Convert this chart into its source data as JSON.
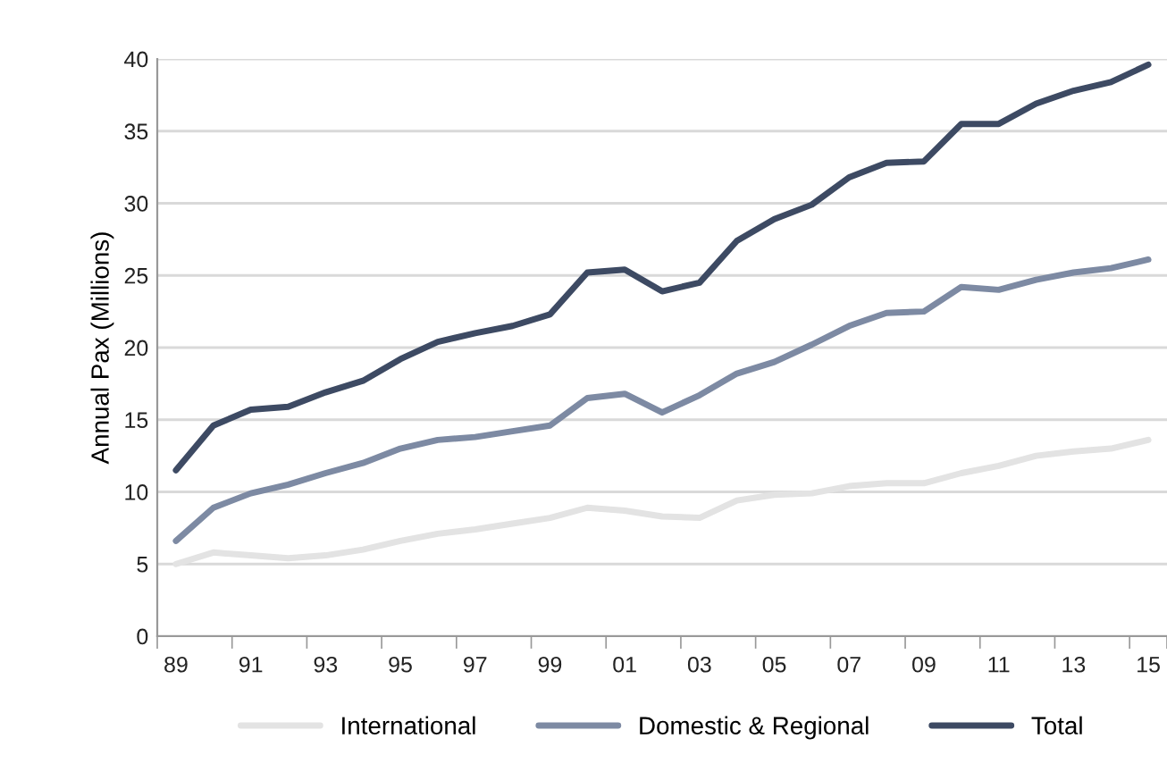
{
  "chart_data": {
    "type": "line",
    "ylabel": "Annual Pax (Millions)",
    "categories": [
      "89",
      null,
      "91",
      null,
      "93",
      null,
      "95",
      null,
      "97",
      null,
      "99",
      null,
      "01",
      null,
      "03",
      null,
      "05",
      null,
      "07",
      null,
      "09",
      null,
      "11",
      null,
      "13",
      null,
      "15"
    ],
    "series": [
      {
        "name": "International",
        "color": "#e3e3e3",
        "values": [
          5.0,
          5.8,
          5.6,
          5.4,
          5.6,
          6.0,
          6.6,
          7.1,
          7.4,
          7.8,
          8.2,
          8.9,
          8.7,
          8.3,
          8.2,
          9.4,
          9.8,
          9.9,
          10.4,
          10.6,
          10.6,
          11.3,
          11.8,
          12.5,
          12.8,
          13.0,
          13.6
        ]
      },
      {
        "name": "Domestic & Regional",
        "color": "#7d8aa3",
        "values": [
          6.6,
          8.9,
          9.9,
          10.5,
          11.3,
          12.0,
          13.0,
          13.6,
          13.8,
          14.2,
          14.6,
          16.5,
          16.8,
          15.5,
          16.7,
          18.2,
          19.0,
          20.2,
          21.5,
          22.4,
          22.5,
          24.2,
          24.0,
          24.7,
          25.2,
          25.5,
          26.1
        ]
      },
      {
        "name": "Total",
        "color": "#3d4a63",
        "values": [
          11.5,
          14.6,
          15.7,
          15.9,
          16.9,
          17.7,
          19.2,
          20.4,
          21.0,
          21.5,
          22.3,
          25.2,
          25.4,
          23.9,
          24.5,
          27.4,
          28.9,
          29.9,
          31.8,
          32.8,
          32.9,
          35.5,
          35.5,
          36.9,
          37.8,
          38.4,
          39.6
        ]
      }
    ],
    "ylim": [
      0,
      40
    ],
    "yticks": [
      0,
      5,
      10,
      15,
      20,
      25,
      30,
      35,
      40
    ],
    "grid": "y",
    "legend": "bottom",
    "marker": "none",
    "line_style": "solid"
  }
}
